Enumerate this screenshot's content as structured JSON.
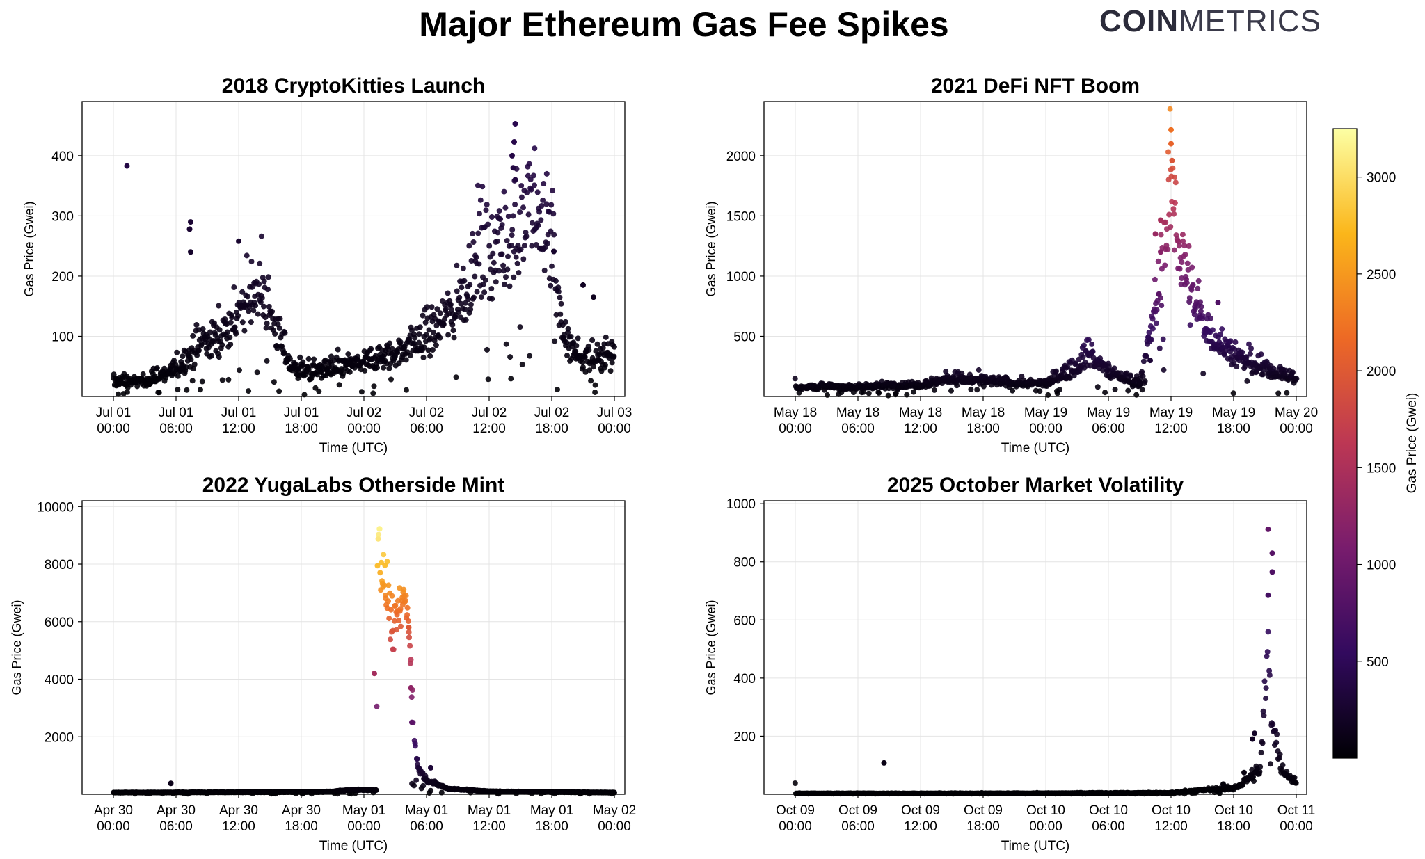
{
  "title": "Major Ethereum Gas Fee Spikes",
  "logo": {
    "bold": "COIN",
    "light": "METRICS"
  },
  "colorbar": {
    "label": "Gas Price (Gwei)",
    "range": [
      0,
      3250
    ],
    "ticks": [
      "500",
      "1000",
      "1500",
      "2000",
      "2500",
      "3000"
    ],
    "colormap": [
      "#000004",
      "#320a5e",
      "#781c6d",
      "#bc3754",
      "#ed6925",
      "#fbb61a",
      "#fcffa4"
    ]
  },
  "chart_data": [
    {
      "type": "scatter",
      "title": "2018 CryptoKitties Launch",
      "xlabel": "Time (UTC)",
      "ylabel": "Gas Price (Gwei)",
      "xlim_hours": [
        -3,
        49
      ],
      "ylim": [
        0,
        490
      ],
      "yticks": [
        100,
        200,
        300,
        400
      ],
      "xtick_labels": [
        [
          "Jul 01",
          "00:00"
        ],
        [
          "Jul 01",
          "06:00"
        ],
        [
          "Jul 01",
          "12:00"
        ],
        [
          "Jul 01",
          "18:00"
        ],
        [
          "Jul 02",
          "00:00"
        ],
        [
          "Jul 02",
          "06:00"
        ],
        [
          "Jul 02",
          "12:00"
        ],
        [
          "Jul 02",
          "18:00"
        ],
        [
          "Jul 03",
          "00:00"
        ]
      ],
      "profile": [
        [
          0,
          25
        ],
        [
          3,
          25
        ],
        [
          6,
          45
        ],
        [
          8,
          80
        ],
        [
          10,
          100
        ],
        [
          12,
          130
        ],
        [
          13.5,
          180
        ],
        [
          15,
          140
        ],
        [
          17,
          50
        ],
        [
          19,
          40
        ],
        [
          22,
          50
        ],
        [
          24,
          55
        ],
        [
          27,
          70
        ],
        [
          30,
          100
        ],
        [
          33,
          150
        ],
        [
          35,
          230
        ],
        [
          37,
          250
        ],
        [
          39,
          280
        ],
        [
          41,
          300
        ],
        [
          42,
          250
        ],
        [
          43,
          100
        ],
        [
          45,
          60
        ],
        [
          47,
          70
        ],
        [
          48,
          70
        ]
      ],
      "spread": 0.35,
      "outliers": [
        [
          1.3,
          383
        ],
        [
          7.4,
          290
        ],
        [
          7.3,
          278
        ],
        [
          7.4,
          240
        ],
        [
          12,
          258
        ],
        [
          38.5,
          453
        ],
        [
          38.4,
          423
        ],
        [
          38.2,
          400
        ],
        [
          38.3,
          380
        ],
        [
          38.5,
          360
        ],
        [
          42.2,
          241
        ],
        [
          45,
          185
        ],
        [
          46,
          165
        ]
      ],
      "num_points": 900,
      "color_scale": 3250
    },
    {
      "type": "scatter",
      "title": "2021 DeFi NFT Boom",
      "xlabel": "Time (UTC)",
      "ylabel": "Gas Price (Gwei)",
      "xlim_hours": [
        -3,
        49
      ],
      "ylim": [
        0,
        2450
      ],
      "yticks": [
        500,
        1000,
        1500,
        2000
      ],
      "xtick_labels": [
        [
          "May 18",
          "00:00"
        ],
        [
          "May 18",
          "06:00"
        ],
        [
          "May 18",
          "12:00"
        ],
        [
          "May 18",
          "18:00"
        ],
        [
          "May 19",
          "00:00"
        ],
        [
          "May 19",
          "06:00"
        ],
        [
          "May 19",
          "12:00"
        ],
        [
          "May 19",
          "18:00"
        ],
        [
          "May 20",
          "00:00"
        ]
      ],
      "profile": [
        [
          0,
          80
        ],
        [
          6,
          80
        ],
        [
          12,
          100
        ],
        [
          15,
          150
        ],
        [
          18,
          130
        ],
        [
          21,
          110
        ],
        [
          24,
          110
        ],
        [
          27,
          250
        ],
        [
          28,
          370
        ],
        [
          30,
          200
        ],
        [
          32,
          140
        ],
        [
          33,
          110
        ],
        [
          34,
          500
        ],
        [
          35,
          1000
        ],
        [
          36,
          1700
        ],
        [
          37,
          1200
        ],
        [
          38,
          800
        ],
        [
          40,
          500
        ],
        [
          42,
          350
        ],
        [
          44,
          250
        ],
        [
          46,
          200
        ],
        [
          48,
          150
        ]
      ],
      "spread": 0.3,
      "outliers": [
        [
          36,
          2215
        ],
        [
          36,
          2100
        ],
        [
          36.1,
          1960
        ],
        [
          35,
          1465
        ],
        [
          34.5,
          1350
        ],
        [
          35,
          1200
        ],
        [
          40.5,
          780
        ],
        [
          34,
          300
        ],
        [
          33,
          120
        ]
      ],
      "num_points": 900,
      "color_scale": 3250
    },
    {
      "type": "scatter",
      "title": "2022 YugaLabs Otherside Mint",
      "xlabel": "Time (UTC)",
      "ylabel": "Gas Price (Gwei)",
      "xlim_hours": [
        -3,
        49
      ],
      "ylim": [
        0,
        10200
      ],
      "yticks": [
        2000,
        4000,
        6000,
        8000,
        10000
      ],
      "xtick_labels": [
        [
          "Apr 30",
          "00:00"
        ],
        [
          "Apr 30",
          "06:00"
        ],
        [
          "Apr 30",
          "12:00"
        ],
        [
          "Apr 30",
          "18:00"
        ],
        [
          "May 01",
          "00:00"
        ],
        [
          "May 01",
          "06:00"
        ],
        [
          "May 01",
          "12:00"
        ],
        [
          "May 01",
          "18:00"
        ],
        [
          "May 02",
          "00:00"
        ]
      ],
      "profile": [
        [
          0,
          60
        ],
        [
          10,
          70
        ],
        [
          20,
          80
        ],
        [
          23,
          150
        ],
        [
          24,
          150
        ],
        [
          25.2,
          150
        ],
        [
          25.3,
          8800
        ],
        [
          25.8,
          7600
        ],
        [
          26.3,
          6800
        ],
        [
          26.8,
          5500
        ],
        [
          27.3,
          6400
        ],
        [
          28,
          6800
        ],
        [
          28.4,
          5500
        ],
        [
          28.8,
          2000
        ],
        [
          29.2,
          900
        ],
        [
          30,
          500
        ],
        [
          32,
          200
        ],
        [
          36,
          100
        ],
        [
          48,
          60
        ]
      ],
      "spread": 0.12,
      "outliers": [
        [
          25,
          4200
        ],
        [
          28.3,
          5800
        ],
        [
          28.5,
          3700
        ],
        [
          28.6,
          2500
        ],
        [
          30.4,
          920
        ],
        [
          5.5,
          380
        ],
        [
          40,
          90
        ]
      ],
      "num_points": 900,
      "color_scale": 9500
    },
    {
      "type": "scatter",
      "title": "2025 October Market Volatility",
      "xlabel": "Time (UTC)",
      "ylabel": "Gas Price (Gwei)",
      "xlim_hours": [
        -3,
        49
      ],
      "ylim": [
        0,
        1010
      ],
      "yticks": [
        200,
        400,
        600,
        800,
        1000
      ],
      "xtick_labels": [
        [
          "Oct 09",
          "00:00"
        ],
        [
          "Oct 09",
          "06:00"
        ],
        [
          "Oct 09",
          "12:00"
        ],
        [
          "Oct 09",
          "18:00"
        ],
        [
          "Oct 10",
          "00:00"
        ],
        [
          "Oct 10",
          "06:00"
        ],
        [
          "Oct 10",
          "12:00"
        ],
        [
          "Oct 10",
          "18:00"
        ],
        [
          "Oct 11",
          "00:00"
        ]
      ],
      "profile": [
        [
          0,
          3
        ],
        [
          20,
          3
        ],
        [
          36,
          5
        ],
        [
          39,
          15
        ],
        [
          42,
          20
        ],
        [
          44.5,
          80
        ],
        [
          45,
          300
        ],
        [
          45.3,
          500
        ],
        [
          45.6,
          300
        ],
        [
          46,
          200
        ],
        [
          46.5,
          100
        ],
        [
          47.5,
          55
        ],
        [
          48,
          40
        ]
      ],
      "spread": 0.3,
      "outliers": [
        [
          45.3,
          912
        ],
        [
          45.7,
          830
        ],
        [
          45.7,
          765
        ],
        [
          45.3,
          685
        ],
        [
          8.5,
          108
        ],
        [
          43.8,
          190
        ],
        [
          44,
          210
        ],
        [
          43,
          75
        ],
        [
          41,
          35
        ]
      ],
      "num_points": 700,
      "color_scale": 3250
    }
  ]
}
